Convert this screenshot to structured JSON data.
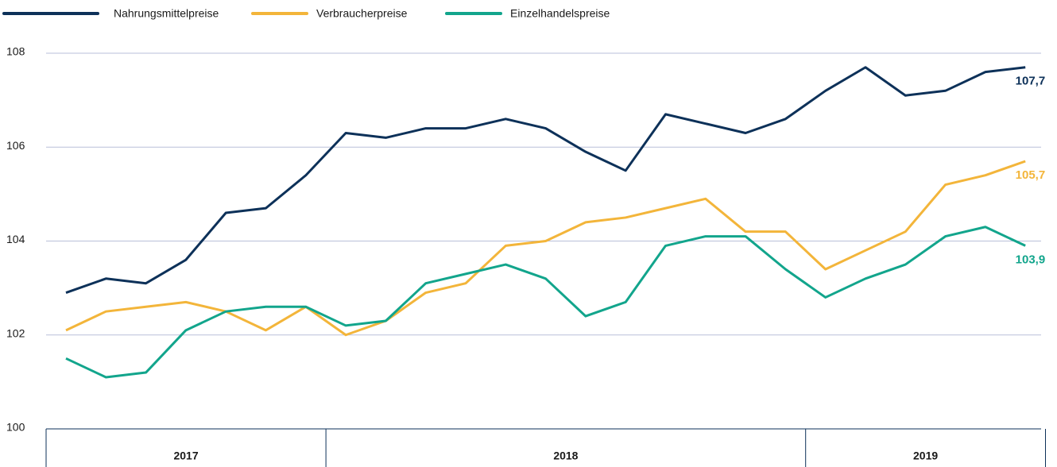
{
  "chart_data": {
    "type": "line",
    "categories": [
      null,
      null,
      null,
      null,
      null,
      null,
      null,
      null,
      null,
      null,
      null,
      null,
      null,
      null,
      null,
      null,
      null,
      null,
      null,
      null,
      null,
      null,
      null,
      null,
      null
    ],
    "periods": [
      {
        "label": "2017",
        "months": 7
      },
      {
        "label": "2018",
        "months": 12
      },
      {
        "label": "2019",
        "months": 6
      }
    ],
    "series": [
      {
        "name": "Nahrungsmittelpreise",
        "color": "#0d3159",
        "values": [
          102.9,
          103.2,
          103.1,
          103.6,
          104.6,
          104.7,
          105.4,
          106.3,
          106.2,
          106.4,
          106.4,
          106.6,
          106.4,
          105.9,
          105.5,
          106.7,
          106.5,
          106.3,
          106.6,
          107.2,
          107.7,
          107.1,
          107.2,
          107.6,
          107.7
        ],
        "value_labels": [
          null,
          null,
          null,
          null,
          null,
          null,
          null,
          null,
          null,
          null,
          null,
          null,
          null,
          null,
          null,
          null,
          null,
          null,
          null,
          null,
          null,
          null,
          null,
          null,
          "107,7"
        ]
      },
      {
        "name": "Verbraucherpreise",
        "color": "#f3b53a",
        "values": [
          102.1,
          102.5,
          102.6,
          102.7,
          102.5,
          102.1,
          102.6,
          102.0,
          102.3,
          102.9,
          103.1,
          103.9,
          104.0,
          104.4,
          104.5,
          104.7,
          104.9,
          104.2,
          104.2,
          103.4,
          103.8,
          104.2,
          105.2,
          105.4,
          105.7
        ],
        "value_labels": [
          null,
          null,
          null,
          null,
          null,
          null,
          null,
          null,
          null,
          null,
          null,
          null,
          null,
          null,
          null,
          null,
          null,
          null,
          null,
          null,
          null,
          null,
          null,
          null,
          "105,7"
        ]
      },
      {
        "name": "Einzelhandelspreise",
        "color": "#12a58c",
        "values": [
          101.5,
          101.1,
          101.2,
          102.1,
          102.5,
          102.6,
          102.6,
          102.2,
          102.3,
          103.1,
          103.3,
          103.5,
          103.2,
          102.4,
          102.7,
          103.9,
          104.1,
          104.1,
          103.4,
          102.8,
          103.2,
          103.5,
          104.1,
          104.3,
          103.9
        ],
        "value_labels": [
          null,
          null,
          null,
          null,
          null,
          null,
          null,
          null,
          null,
          null,
          null,
          null,
          null,
          null,
          null,
          null,
          null,
          null,
          null,
          null,
          null,
          null,
          null,
          null,
          "103,9"
        ]
      }
    ],
    "ylim": [
      100,
      108
    ],
    "yticks": [
      100,
      102,
      104,
      106,
      108
    ],
    "grid": true,
    "legend": "top-left"
  }
}
